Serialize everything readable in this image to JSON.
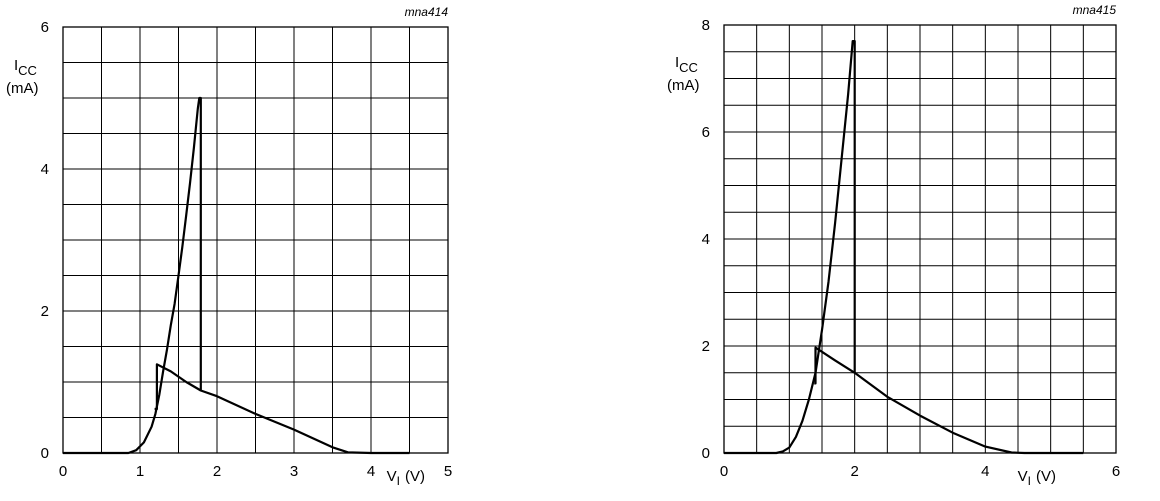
{
  "chart_data": [
    {
      "type": "line",
      "code": "mna414",
      "ylabel": {
        "main": "I",
        "sub": "CC",
        "unit": "(mA)"
      },
      "xlabel": {
        "main": "V",
        "sub": "I",
        "unit": "(V)"
      },
      "xlim": [
        0,
        5
      ],
      "ylim": [
        0,
        6
      ],
      "x_ticks": [
        "0",
        "1",
        "2",
        "3",
        "4",
        "5"
      ],
      "y_ticks": [
        "0",
        "2",
        "4",
        "6"
      ],
      "grid": true,
      "series": [
        {
          "points": [
            [
              0,
              0
            ],
            [
              0.85,
              0
            ],
            [
              0.95,
              0.04
            ],
            [
              1.05,
              0.15
            ],
            [
              1.15,
              0.37
            ],
            [
              1.2,
              0.55
            ],
            [
              1.25,
              0.82
            ],
            [
              1.3,
              1.15
            ],
            [
              1.35,
              1.45
            ],
            [
              1.4,
              1.8
            ],
            [
              1.45,
              2.1
            ],
            [
              1.5,
              2.5
            ],
            [
              1.55,
              2.9
            ],
            [
              1.6,
              3.35
            ],
            [
              1.65,
              3.8
            ],
            [
              1.7,
              4.3
            ],
            [
              1.75,
              4.85
            ],
            [
              1.77,
              5.0
            ],
            [
              1.79,
              5.0
            ],
            [
              1.79,
              0.88
            ],
            [
              2.0,
              0.8
            ],
            [
              2.5,
              0.55
            ],
            [
              3.0,
              0.33
            ],
            [
              3.5,
              0.08
            ],
            [
              3.7,
              0.01
            ],
            [
              4.0,
              0
            ],
            [
              4.5,
              0
            ]
          ]
        },
        {
          "points": [
            [
              1.19,
              0.62
            ],
            [
              1.22,
              0.62
            ],
            [
              1.22,
              1.25
            ],
            [
              1.4,
              1.15
            ],
            [
              1.6,
              1.0
            ],
            [
              1.79,
              0.88
            ]
          ]
        }
      ]
    },
    {
      "type": "line",
      "code": "mna415",
      "ylabel": {
        "main": "I",
        "sub": "CC",
        "unit": "(mA)"
      },
      "xlabel": {
        "main": "V",
        "sub": "I",
        "unit": "(V)"
      },
      "xlim": [
        0,
        6
      ],
      "ylim": [
        0,
        8
      ],
      "x_ticks": [
        "0",
        "2",
        "4",
        "6"
      ],
      "y_ticks": [
        "0",
        "2",
        "4",
        "6",
        "8"
      ],
      "grid": true,
      "series": [
        {
          "points": [
            [
              0,
              0
            ],
            [
              0.8,
              0
            ],
            [
              0.9,
              0.03
            ],
            [
              1.0,
              0.1
            ],
            [
              1.1,
              0.3
            ],
            [
              1.2,
              0.6
            ],
            [
              1.3,
              1.0
            ],
            [
              1.4,
              1.5
            ],
            [
              1.5,
              2.3
            ],
            [
              1.6,
              3.2
            ],
            [
              1.7,
              4.3
            ],
            [
              1.8,
              5.5
            ],
            [
              1.9,
              6.7
            ],
            [
              1.97,
              7.7
            ],
            [
              2.0,
              7.7
            ],
            [
              2.0,
              1.5
            ],
            [
              2.5,
              1.05
            ],
            [
              3.0,
              0.7
            ],
            [
              3.5,
              0.38
            ],
            [
              4.0,
              0.12
            ],
            [
              4.4,
              0.01
            ],
            [
              4.6,
              0
            ],
            [
              5.5,
              0
            ]
          ]
        },
        {
          "points": [
            [
              1.38,
              1.3
            ],
            [
              1.4,
              1.3
            ],
            [
              1.4,
              1.97
            ],
            [
              1.7,
              1.73
            ],
            [
              2.0,
              1.5
            ]
          ]
        }
      ]
    }
  ]
}
